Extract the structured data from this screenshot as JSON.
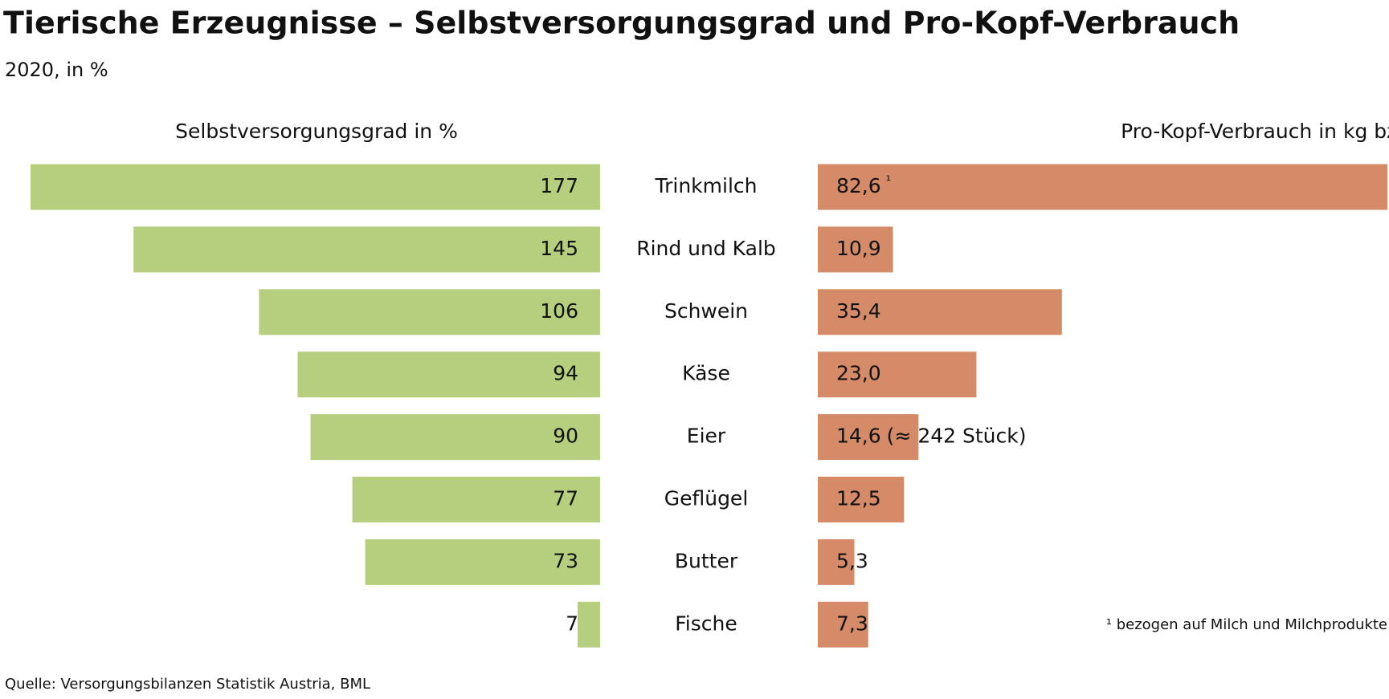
{
  "title": "Tierische Erzeugnisse – Selbstversorgungsgrad und Pro-Kopf-Verbrauch",
  "subtitle": "2020, in %",
  "source": "Quelle: Versorgungsbilanzen Statistik Austria, BML",
  "footnote": "¹ bezogen auf Milch und Milchprodukte",
  "chart_data": [
    {
      "type": "bar",
      "orientation": "horizontal",
      "direction": "left",
      "title": "Selbstversorgungsgrad in %",
      "categories": [
        "Trinkmilch",
        "Rind und Kalb",
        "Schwein",
        "Käse",
        "Eier",
        "Geflügel",
        "Butter",
        "Fische"
      ],
      "values": [
        177,
        145,
        106,
        94,
        90,
        77,
        73,
        7
      ],
      "color": "#b5cf7f",
      "xlim": [
        0,
        177
      ]
    },
    {
      "type": "bar",
      "orientation": "horizontal",
      "direction": "right",
      "title": "Pro-Kopf-Verbrauch in kg bzw. Liter/Jahr",
      "values": [
        82.6,
        10.9,
        35.4,
        23.0,
        14.6,
        12.5,
        5.3,
        7.3
      ],
      "value_labels": [
        "82,6",
        "10,9",
        "35,4",
        "23,0",
        "14,6",
        "12,5",
        "5,3",
        "7,3"
      ],
      "annotations": [
        {
          "index": 0,
          "text": "¹"
        },
        {
          "index": 4,
          "text": "(≈ 242 Stück)"
        }
      ],
      "color": "#d68b68",
      "xlim": [
        0,
        82.6
      ]
    }
  ]
}
